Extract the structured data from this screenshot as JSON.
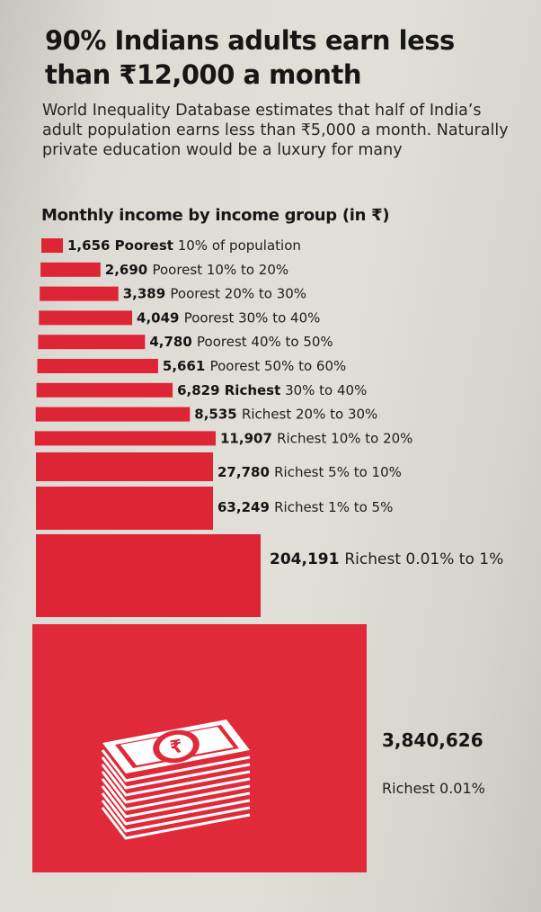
{
  "headline": "90% Indians adults earn less than ₹12,000 a month",
  "subhead": "World Inequality Database estimates that half of India’s adult population earns less than ₹5,000 a month. Naturally private education would be a luxury for many",
  "chart_data": {
    "type": "bar",
    "orientation": "horizontal",
    "title": "Monthly income by income group (in ₹)",
    "categories": [
      "Poorest 10% of population",
      "Poorest 10% to 20%",
      "Poorest 20% to 30%",
      "Poorest 30% to 40%",
      "Poorest 40% to 50%",
      "Poorest 50% to 60%",
      "Richest 30% to 40%",
      "Richest 20% to 30%",
      "Richest 10% to 20%",
      "Richest 5% to 10%",
      "Richest 1% to 5%",
      "Richest 0.01% to 1%",
      "Richest 0.01%"
    ],
    "values": [
      1656,
      2690,
      3389,
      4049,
      4780,
      5661,
      6829,
      8535,
      11907,
      27780,
      63249,
      204191,
      3840626
    ],
    "value_labels": [
      "1,656",
      "2,690",
      "3,389",
      "4,049",
      "4,780",
      "5,661",
      "6,829",
      "8,535",
      "11,907",
      "27,780",
      "63,249",
      "204,191",
      "3,840,626"
    ],
    "label_bold_prefix": [
      "Poorest",
      "",
      "",
      "",
      "",
      "",
      "Richest",
      "",
      "",
      "",
      "",
      "",
      ""
    ],
    "label_rest": [
      " 10% of population",
      "Poorest 10% to 20%",
      "Poorest 20% to 30%",
      "Poorest 30% to 40%",
      "Poorest 40% to 50%",
      "Poorest 50% to 60%",
      " 30% to 40%",
      "Richest 20% to 30%",
      "Richest 10% to 20%",
      "Richest 5% to 10%",
      "Richest 1% to 5%",
      "Richest 0.01% to 1%",
      "Richest 0.01%"
    ],
    "bar_color": "#dd2536",
    "icon": "rupee-cash-stack-icon"
  }
}
